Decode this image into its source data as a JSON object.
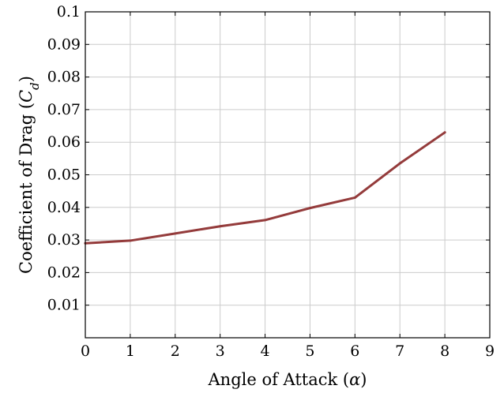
{
  "chart_data": {
    "type": "line",
    "title": "",
    "xlabel": {
      "prefix": "Angle of Attack (",
      "symbol": "α",
      "suffix": ")"
    },
    "ylabel": {
      "prefix": "Coefficient of Drag (",
      "symbol": "C",
      "subscript": "d",
      "suffix": ")"
    },
    "xlim": [
      0,
      9
    ],
    "ylim": [
      0,
      0.1
    ],
    "x_ticks": [
      "0",
      "1",
      "2",
      "3",
      "4",
      "5",
      "6",
      "7",
      "8",
      "9"
    ],
    "y_ticks": [
      "0.01",
      "0.02",
      "0.03",
      "0.04",
      "0.05",
      "0.06",
      "0.07",
      "0.08",
      "0.09",
      "0.1"
    ],
    "grid": true,
    "series": [
      {
        "color": "#943b3b",
        "x": [
          0,
          1,
          2,
          3,
          4,
          5,
          6,
          7,
          8
        ],
        "y": [
          0.029,
          0.0298,
          0.032,
          0.0342,
          0.0361,
          0.0398,
          0.043,
          0.0535,
          0.063
        ]
      }
    ]
  }
}
